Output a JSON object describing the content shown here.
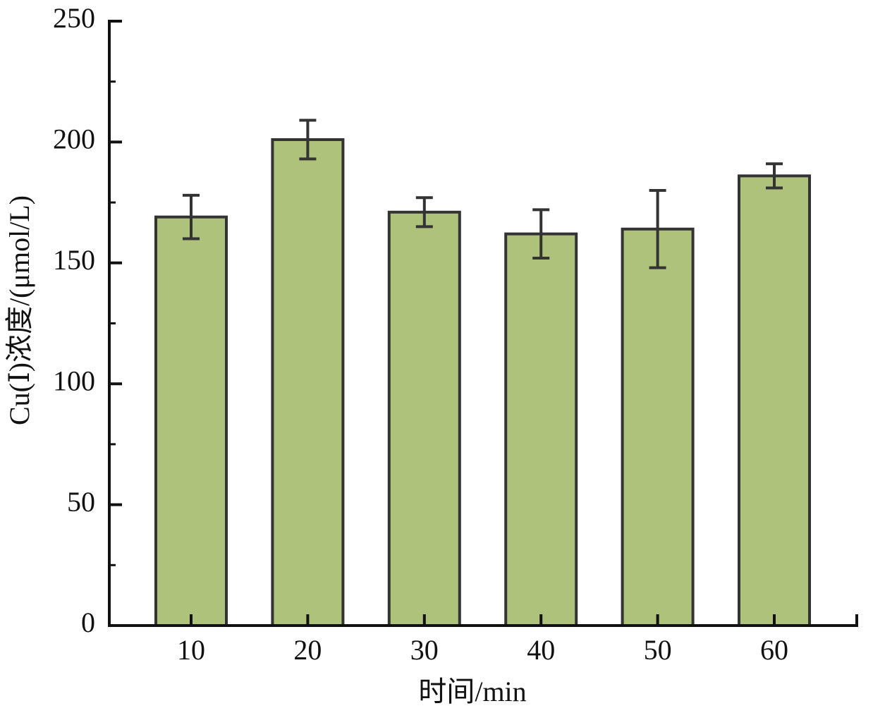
{
  "chart_data": {
    "type": "bar",
    "xlabel": "时间/min",
    "ylabel": "Cu(Ⅰ)浓度/(μmol/L)",
    "categories": [
      "10",
      "20",
      "30",
      "40",
      "50",
      "60"
    ],
    "values": [
      169,
      201,
      171,
      162,
      164,
      186
    ],
    "errors": [
      9,
      8,
      6,
      10,
      16,
      5
    ],
    "color": "#afc27c",
    "edgecolor": "#333333",
    "ylim": [
      0,
      250
    ],
    "yticks": [
      0,
      50,
      100,
      150,
      200,
      250
    ],
    "yminorticks": [
      25,
      75,
      125,
      175,
      225
    ],
    "grid": false
  }
}
